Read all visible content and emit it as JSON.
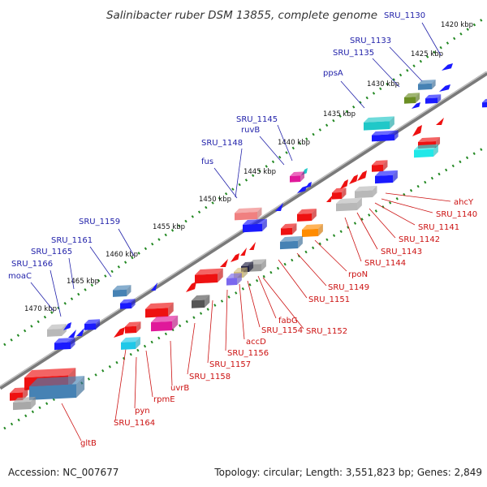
{
  "title": "Salinibacter ruber DSM 13855, complete genome",
  "accession": "Accession: NC_007677",
  "summary": "Topology: circular; Length: 3,551,823 bp; Genes: 2,849",
  "colors": {
    "forward": "#1010ee",
    "reverse": "#ee1111",
    "backbone": "#888888",
    "ticks": "#228822",
    "forward_label": "#2222aa",
    "reverse_label": "#cc1111"
  },
  "tick_labels": [
    "1420 kbp",
    "1425 kbp",
    "1430 kbp",
    "1435 kbp",
    "1440 kbp",
    "1445 kbp",
    "1450 kbp",
    "1455 kbp",
    "1460 kbp",
    "1465 kbp",
    "1470 kbp"
  ],
  "forward_labels": [
    "SRU_1130",
    "SRU_1133",
    "SRU_1135",
    "ppsA",
    "SRU_1145",
    "ruvB",
    "SRU_1148",
    "fus",
    "SRU_1159",
    "SRU_1161",
    "SRU_1165",
    "SRU_1166",
    "moaC"
  ],
  "reverse_labels": [
    "ahcY",
    "SRU_1140",
    "SRU_1141",
    "SRU_1142",
    "SRU_1143",
    "SRU_1144",
    "rpoN",
    "SRU_1149",
    "SRU_1151",
    "fabG",
    "SRU_1152",
    "SRU_1154",
    "accD",
    "SRU_1156",
    "SRU_1157",
    "SRU_1158",
    "uvrB",
    "rpmE",
    "pyn",
    "SRU_1164",
    "gltB"
  ]
}
